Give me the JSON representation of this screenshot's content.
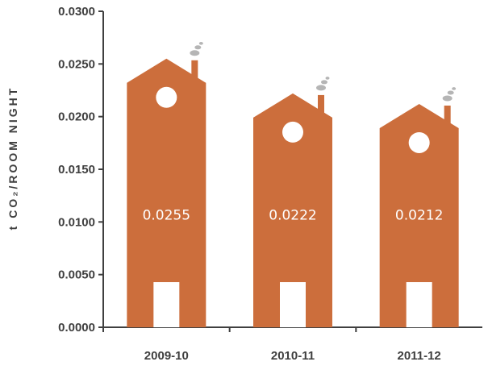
{
  "chart_data": {
    "type": "bar",
    "title": "",
    "xlabel": "",
    "ylabel": "t CO₂/ROOM NIGHT",
    "categories": [
      "2009-10",
      "2010-11",
      "2011-12"
    ],
    "values": [
      0.0255,
      0.0222,
      0.0212
    ],
    "data_labels": [
      "0.0255",
      "0.0222",
      "0.0212"
    ],
    "ylim": [
      0,
      0.03
    ],
    "yticks": [
      0.0,
      0.005,
      0.01,
      0.015,
      0.02,
      0.025,
      0.03
    ],
    "ytick_labels": [
      "0.0000",
      "0.0050",
      "0.0100",
      "0.0150",
      "0.0200",
      "0.0250",
      "0.0300"
    ],
    "grid": false,
    "legend": "none",
    "bar_style": "house-shaped bars with chimney, smoke puffs, round window and door",
    "colors": {
      "bar": "#cc6e3c",
      "window_door": "#ffffff",
      "smoke": "#b5b5b5",
      "axis": "#3f3f3f",
      "text": "#3f3f3f"
    }
  }
}
